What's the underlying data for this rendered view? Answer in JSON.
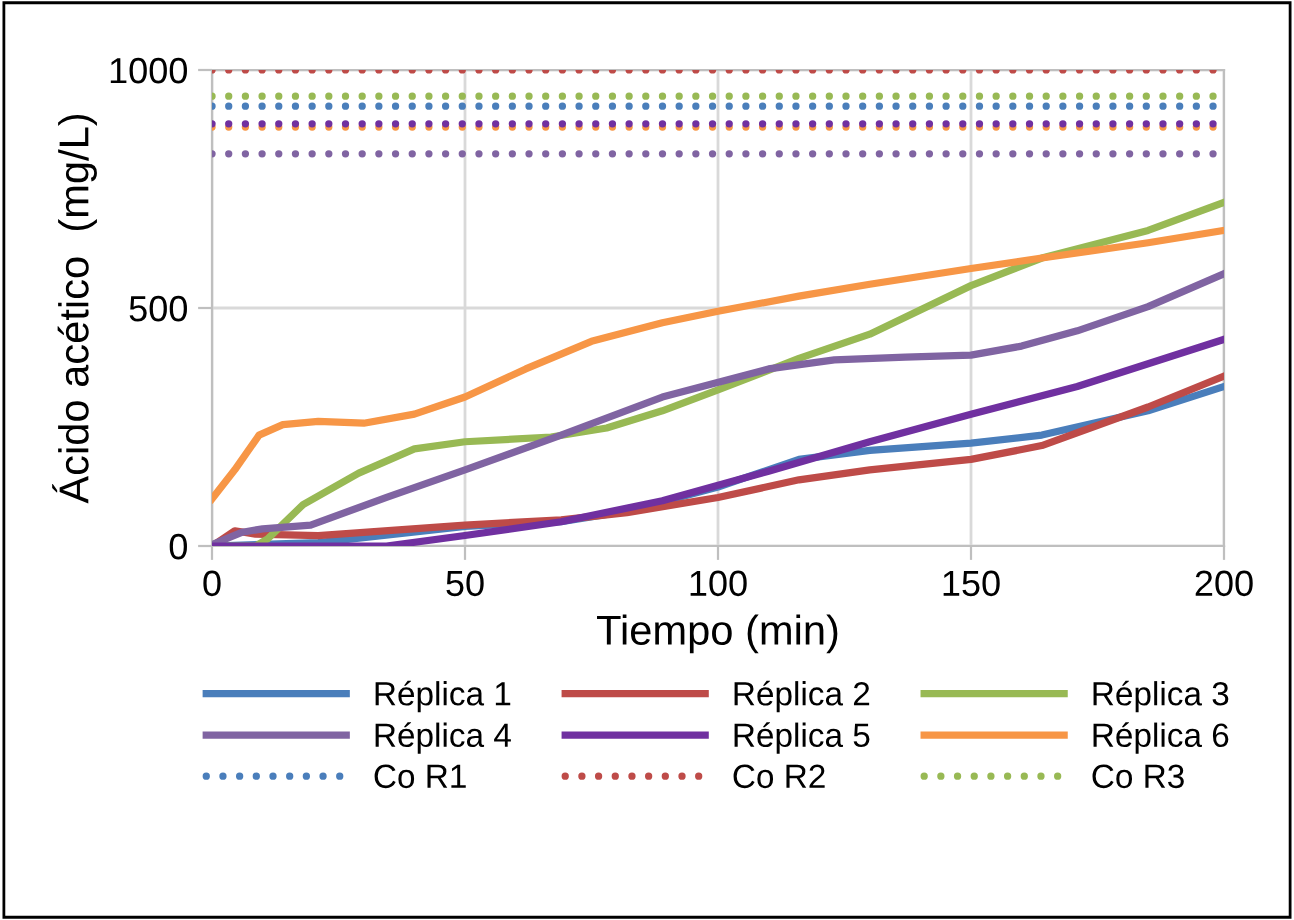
{
  "chart_data": {
    "type": "line",
    "xlabel": "Tiempo (min)",
    "ylabel": "Ácido acético  (mg/L)",
    "xlim": [
      0,
      200
    ],
    "xticks": [
      0,
      50,
      100,
      150,
      200
    ],
    "ylim": [
      0,
      1000
    ],
    "yticks": [
      0,
      500,
      1000
    ],
    "grid": true,
    "legend": "bottom",
    "marker": "none",
    "line_style": "solid",
    "series": [
      {
        "name": "Réplica 1",
        "color": "#4a7ebb",
        "x": [
          0,
          21,
          50,
          69,
          82,
          100,
          116,
          130,
          150,
          164,
          185,
          200
        ],
        "values": [
          0,
          7,
          41,
          51,
          73,
          124,
          182,
          201,
          216,
          233,
          284,
          335
        ]
      },
      {
        "name": "Réplica 2",
        "color": "#be4b48",
        "x": [
          0,
          4.5,
          8.6,
          21,
          50,
          69,
          82,
          100,
          116,
          130,
          150,
          164,
          185,
          200
        ],
        "values": [
          0,
          32,
          25,
          22,
          44,
          55,
          70,
          102,
          139,
          160,
          182,
          211,
          292,
          357
        ]
      },
      {
        "name": "Réplica 3",
        "color": "#98b954",
        "x": [
          0,
          8.6,
          11,
          18,
          29,
          40,
          50,
          67,
          78,
          89,
          100,
          116,
          130,
          150,
          164,
          185,
          200
        ],
        "values": [
          0,
          0,
          15,
          87,
          153,
          204,
          219,
          229,
          248,
          284,
          328,
          394,
          445,
          547,
          605,
          663,
          722
        ]
      },
      {
        "name": "Réplica 4",
        "color": "#8064a2",
        "x": [
          0,
          6,
          10,
          19.5,
          34.5,
          50,
          69,
          89,
          110,
          123,
          137,
          150,
          160,
          171,
          185,
          200
        ],
        "values": [
          3,
          29,
          36,
          44,
          102,
          160,
          233,
          313,
          372,
          391,
          397,
          401,
          420,
          452,
          503,
          572
        ]
      },
      {
        "name": "Réplica 5",
        "color": "#7030a0",
        "x": [
          0,
          34.5,
          50,
          69,
          89,
          110,
          130,
          150,
          171,
          200
        ],
        "values": [
          0,
          0,
          22,
          51,
          95,
          157,
          219,
          277,
          335,
          434
        ]
      },
      {
        "name": "Réplica 6",
        "color": "#f79646",
        "x": [
          0,
          4.5,
          9.3,
          14,
          21,
          30,
          40,
          50,
          62,
          75,
          89,
          100,
          116,
          130,
          150,
          164,
          185,
          200
        ],
        "values": [
          99,
          160,
          233,
          255,
          262,
          258,
          277,
          313,
          372,
          430,
          469,
          493,
          525,
          550,
          583,
          605,
          637,
          663
        ]
      },
      {
        "name": "Co R1",
        "color": "#4a7ebb",
        "line_style": "dotted",
        "x": [
          0,
          200
        ],
        "values": [
          924,
          924
        ]
      },
      {
        "name": "Co R2",
        "color": "#be4b48",
        "line_style": "dotted",
        "x": [
          0,
          200
        ],
        "values": [
          1000,
          1000
        ]
      },
      {
        "name": "Co R3",
        "color": "#98b954",
        "line_style": "dotted",
        "x": [
          0,
          200
        ],
        "values": [
          945,
          945
        ]
      },
      {
        "color": "#8064a2",
        "line_style": "dotted",
        "x": [
          0,
          200
        ],
        "values": [
          824,
          824
        ]
      },
      {
        "color": "#f79646",
        "line_style": "dotted",
        "x": [
          0,
          200
        ],
        "values": [
          880,
          880
        ]
      },
      {
        "color": "#7030a0",
        "line_style": "dotted",
        "x": [
          0,
          200
        ],
        "values": [
          887,
          887
        ]
      }
    ]
  }
}
